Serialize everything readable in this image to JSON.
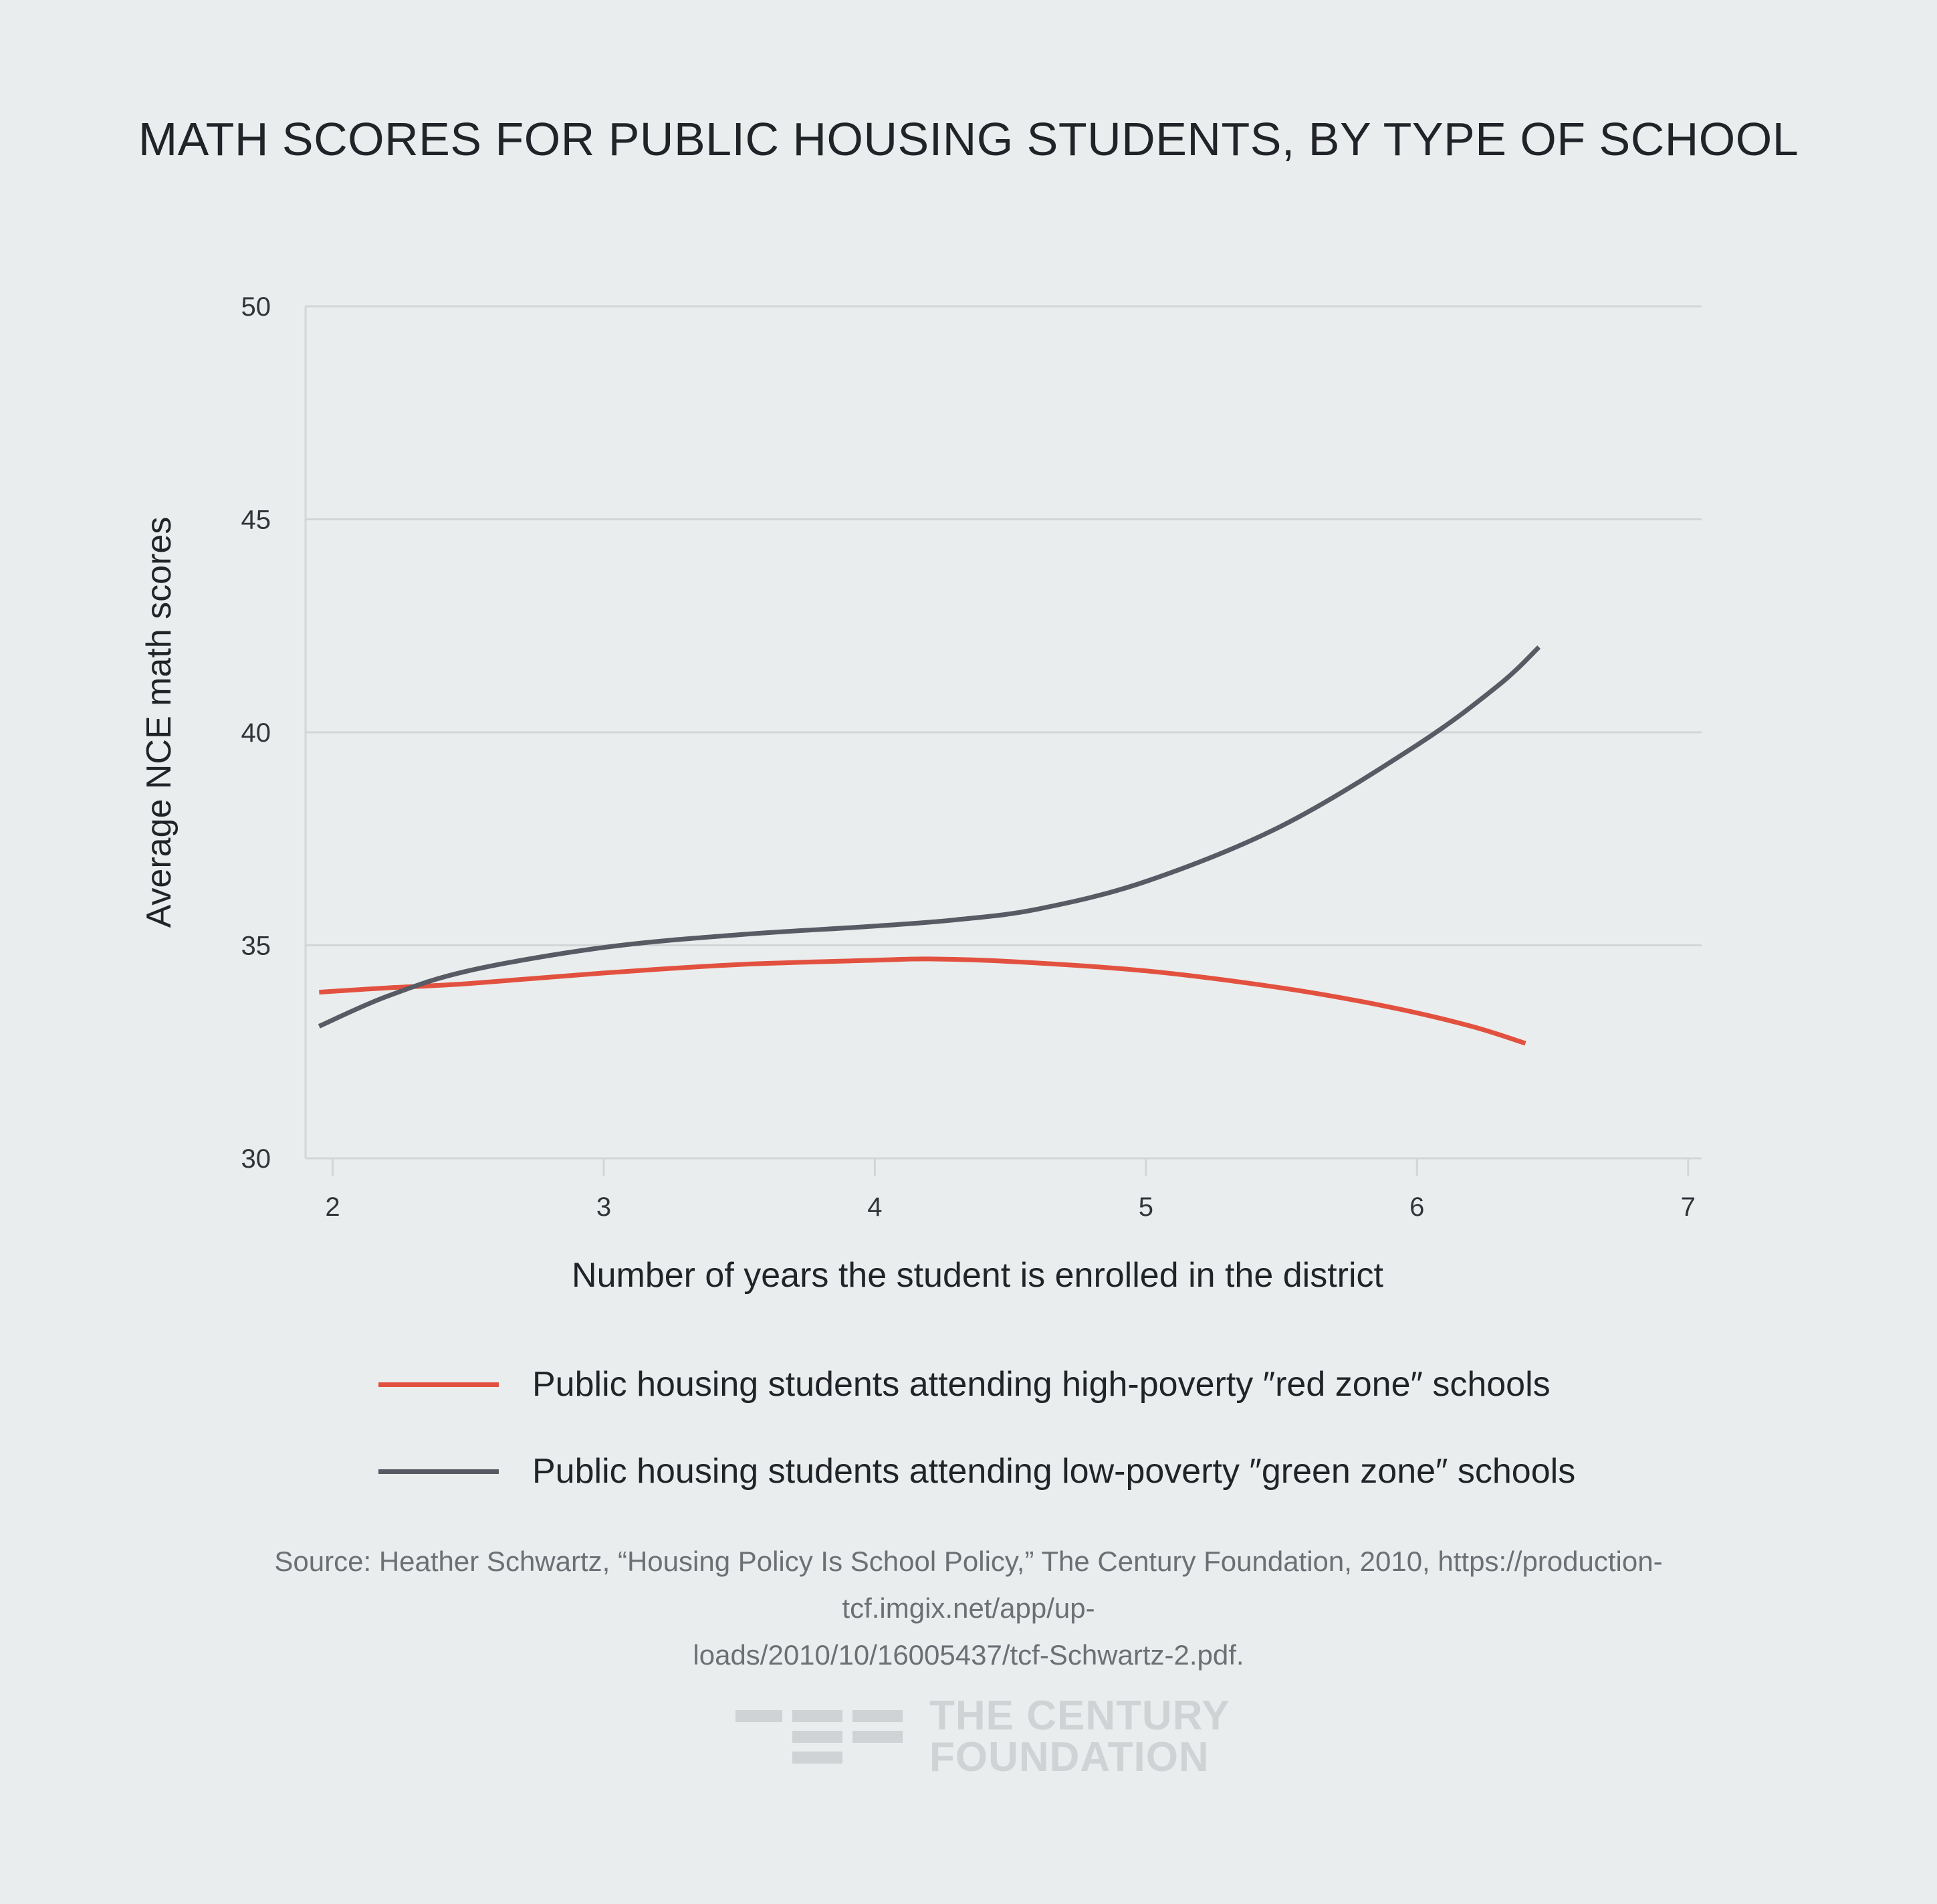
{
  "chart_data": {
    "type": "line",
    "title": "MATH SCORES FOR PUBLIC HOUSING STUDENTS, BY TYPE OF SCHOOL",
    "xlabel": "Number of years the student is enrolled in the district",
    "ylabel": "Average NCE math scores",
    "xlim": [
      1.9,
      7.05
    ],
    "ylim": [
      30,
      50
    ],
    "xticks": [
      2,
      3,
      4,
      5,
      6,
      7
    ],
    "yticks": [
      30,
      35,
      40,
      45,
      50
    ],
    "grid": true,
    "legend_position": "bottom",
    "series": [
      {
        "name": "Public housing students attending high-poverty ″red zone″ schools",
        "color": "#e2513f",
        "x": [
          1.95,
          2.2,
          2.5,
          3.0,
          3.5,
          4.0,
          4.2,
          4.5,
          5.0,
          5.5,
          5.9,
          6.2,
          6.4
        ],
        "y": [
          33.9,
          34.0,
          34.1,
          34.35,
          34.55,
          34.65,
          34.68,
          34.62,
          34.4,
          34.0,
          33.55,
          33.1,
          32.7
        ]
      },
      {
        "name": "Public housing students attending low-poverty ″green zone″ schools",
        "color": "#585a64",
        "x": [
          1.95,
          2.2,
          2.5,
          3.0,
          3.5,
          4.0,
          4.3,
          4.6,
          5.0,
          5.5,
          6.0,
          6.3,
          6.45
        ],
        "y": [
          33.1,
          33.8,
          34.4,
          34.95,
          35.25,
          35.45,
          35.6,
          35.85,
          36.5,
          37.8,
          39.7,
          41.1,
          42.0
        ]
      }
    ]
  },
  "source": {
    "line1": "Source: Heather Schwartz, “Housing Policy Is School Policy,” The Century Foundation, 2010, https://production-tcf.imgix.net/app/up-",
    "line2": "loads/2010/10/16005437/tcf-Schwartz-2.pdf."
  },
  "logo": {
    "line1": "THE CENTURY",
    "line2": "FOUNDATION"
  }
}
